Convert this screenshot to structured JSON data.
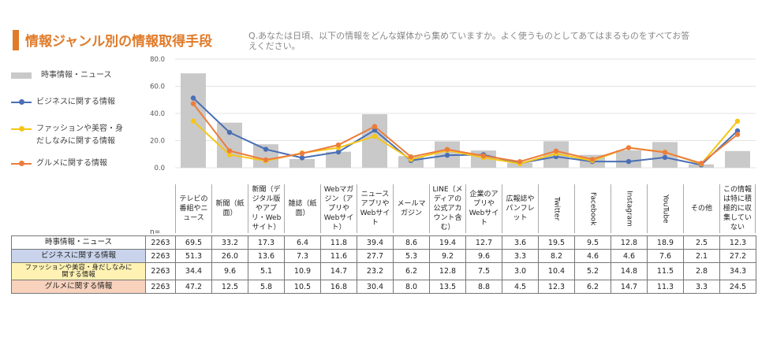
{
  "title": "情報ジャンル別の情報取得手段",
  "question": "Q.あなたは日頃、以下の情報をどんな媒体から集めていますか。よく使うものとしてあてはまるものをすべてお答えください。",
  "colors": {
    "title": "#e07b2a",
    "bar": "#c9c9c9",
    "business": "#4a6fb5",
    "fashion": "#f5c518",
    "gourmet": "#ec7d3c"
  },
  "chart_data": {
    "type": "bar",
    "ylim": [
      0,
      80
    ],
    "yticks": [
      "0.0",
      "20.0",
      "40.0",
      "60.0",
      "80.0"
    ],
    "n_label": "n=",
    "n": "2263",
    "categories": [
      "テレビの番組やニュース",
      "新聞（紙面）",
      "新聞（デジタル版やアプリ・Webサイト）",
      "雑誌（紙面）",
      "Webマガジン（アプリやWebサイト）",
      "ニュースアプリやWebサイト",
      "メールマガジン",
      "LINE（メディアの公式アカウント含む）",
      "企業のアプリやWebサイト",
      "広報誌やパンフレット",
      "Twitter",
      "Facebook",
      "Instagram",
      "YouTube",
      "その他",
      "この情報は特に積極的に収集していない"
    ],
    "series": [
      {
        "name": "時事情報・ニュース",
        "kind": "bar",
        "values": [
          69.5,
          33.2,
          17.3,
          6.4,
          11.8,
          39.4,
          8.6,
          19.4,
          12.7,
          3.6,
          19.5,
          9.5,
          12.8,
          18.9,
          2.5,
          12.3
        ]
      },
      {
        "name": "ビジネスに関する情報",
        "kind": "line",
        "values": [
          51.3,
          26.0,
          13.6,
          7.3,
          11.6,
          27.7,
          5.3,
          9.2,
          9.6,
          3.3,
          8.2,
          4.6,
          4.6,
          7.6,
          2.1,
          27.2
        ]
      },
      {
        "name": "ファッションや美容・身だしなみに関する情報",
        "kind": "line",
        "values": [
          34.4,
          9.6,
          5.1,
          10.9,
          14.7,
          23.2,
          6.2,
          12.8,
          7.5,
          3.0,
          10.4,
          5.2,
          14.8,
          11.5,
          2.8,
          34.3
        ]
      },
      {
        "name": "グルメに関する情報",
        "kind": "line",
        "values": [
          47.2,
          12.5,
          5.8,
          10.5,
          16.8,
          30.4,
          8.0,
          13.5,
          8.8,
          4.5,
          12.3,
          6.2,
          14.7,
          11.3,
          3.3,
          24.5
        ]
      }
    ],
    "legend_labels": [
      "時事情報・ニュース",
      "ビジネスに関する情報",
      "ファッションや美容・身\nだしなみに関する情報",
      "グルメに関する情報"
    ],
    "table_row_labels": [
      "時事情報・ニュース",
      "ビジネスに関する情報",
      "ファッションや美容・身だしなみに\n関する情報",
      "グルメに関する情報"
    ],
    "grid": true,
    "legend": "left"
  }
}
